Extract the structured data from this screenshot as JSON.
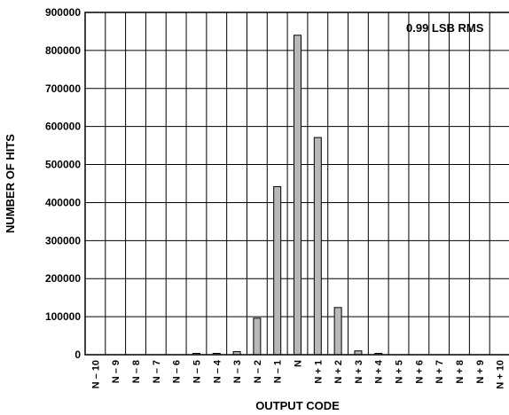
{
  "chart_data": {
    "type": "bar",
    "categories": [
      "N – 10",
      "N – 9",
      "N – 8",
      "N – 7",
      "N – 6",
      "N – 5",
      "N – 4",
      "N – 3",
      "N – 2",
      "N – 1",
      "N",
      "N + 1",
      "N + 2",
      "N + 3",
      "N + 4",
      "N + 5",
      "N + 6",
      "N + 7",
      "N + 8",
      "N + 9",
      "N + 10"
    ],
    "values": [
      0,
      0,
      0,
      0,
      0,
      1000,
      1000,
      8000,
      96000,
      442000,
      840000,
      571000,
      124000,
      10000,
      1000,
      0,
      0,
      0,
      0,
      0,
      0
    ],
    "title": "",
    "xlabel": "OUTPUT CODE",
    "ylabel": "NUMBER OF HITS",
    "ylim": [
      0,
      900000
    ],
    "yticks": [
      "0",
      "100000",
      "200000",
      "300000",
      "400000",
      "500000",
      "600000",
      "700000",
      "800000",
      "900000"
    ],
    "grid": true,
    "annotation": "0.99 LSB RMS",
    "bar_color": "#b8b8b8"
  }
}
